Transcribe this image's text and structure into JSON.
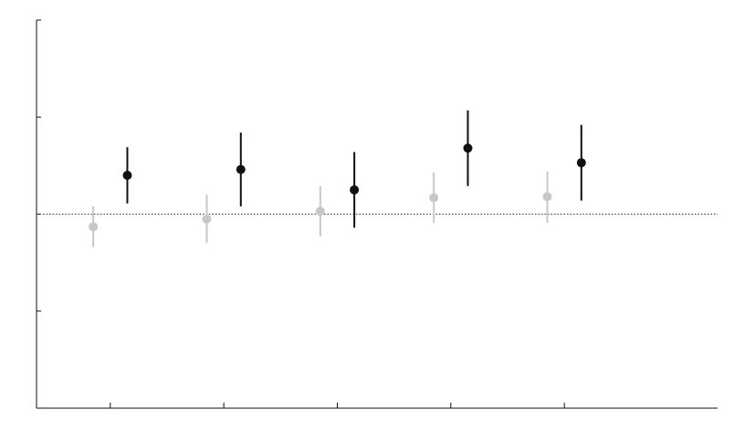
{
  "chart_data": {
    "type": "scatter",
    "title": "",
    "xlabel": "",
    "ylabel": "",
    "x_tick_labels": [],
    "y_tick_labels": [],
    "x": [
      1,
      2,
      3,
      4,
      5
    ],
    "xlim": [
      0.35,
      6.35
    ],
    "ylim": [
      -2,
      2
    ],
    "y_ticks": [
      -1,
      0,
      1,
      2
    ],
    "reference_line": {
      "y": 0,
      "style": "dotted",
      "color": "#333333"
    },
    "grid": false,
    "series": [
      {
        "color": "#c8c8c8",
        "x_offset": -0.15,
        "values": [
          -0.13,
          -0.05,
          0.03,
          0.17,
          0.18
        ],
        "lower": [
          -0.34,
          -0.3,
          -0.23,
          -0.09,
          -0.09
        ],
        "upper": [
          0.08,
          0.2,
          0.29,
          0.43,
          0.44
        ]
      },
      {
        "color": "#111111",
        "x_offset": 0.15,
        "values": [
          0.4,
          0.46,
          0.25,
          0.68,
          0.53
        ],
        "lower": [
          0.11,
          0.08,
          -0.14,
          0.29,
          0.14
        ],
        "upper": [
          0.69,
          0.84,
          0.64,
          1.07,
          0.92
        ]
      }
    ]
  }
}
